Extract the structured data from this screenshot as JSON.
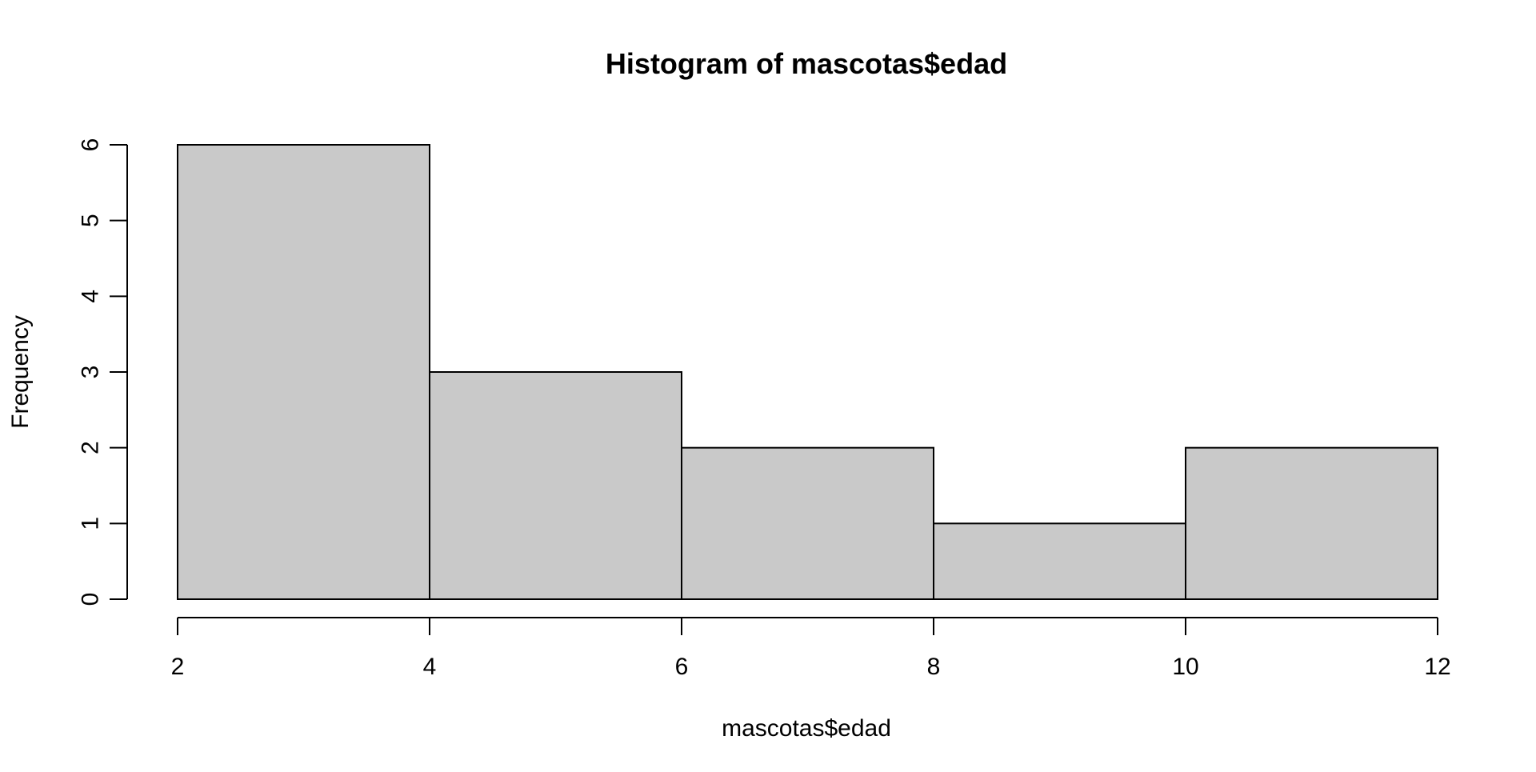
{
  "chart_data": {
    "type": "bar",
    "title": "Histogram of mascotas$edad",
    "xlabel": "mascotas$edad",
    "ylabel": "Frequency",
    "bins": [
      {
        "start": 2,
        "end": 4,
        "count": 6
      },
      {
        "start": 4,
        "end": 6,
        "count": 3
      },
      {
        "start": 6,
        "end": 8,
        "count": 2
      },
      {
        "start": 8,
        "end": 10,
        "count": 1
      },
      {
        "start": 10,
        "end": 12,
        "count": 2
      }
    ],
    "x_ticks": [
      "2",
      "4",
      "6",
      "8",
      "10",
      "12"
    ],
    "y_ticks": [
      "0",
      "1",
      "2",
      "3",
      "4",
      "5",
      "6"
    ],
    "xlim": [
      2,
      12
    ],
    "ylim": [
      0,
      6
    ],
    "grid": false,
    "legend": "none",
    "bar_fill_color": "#c9c9c9",
    "bar_stroke_color": "#000000"
  }
}
